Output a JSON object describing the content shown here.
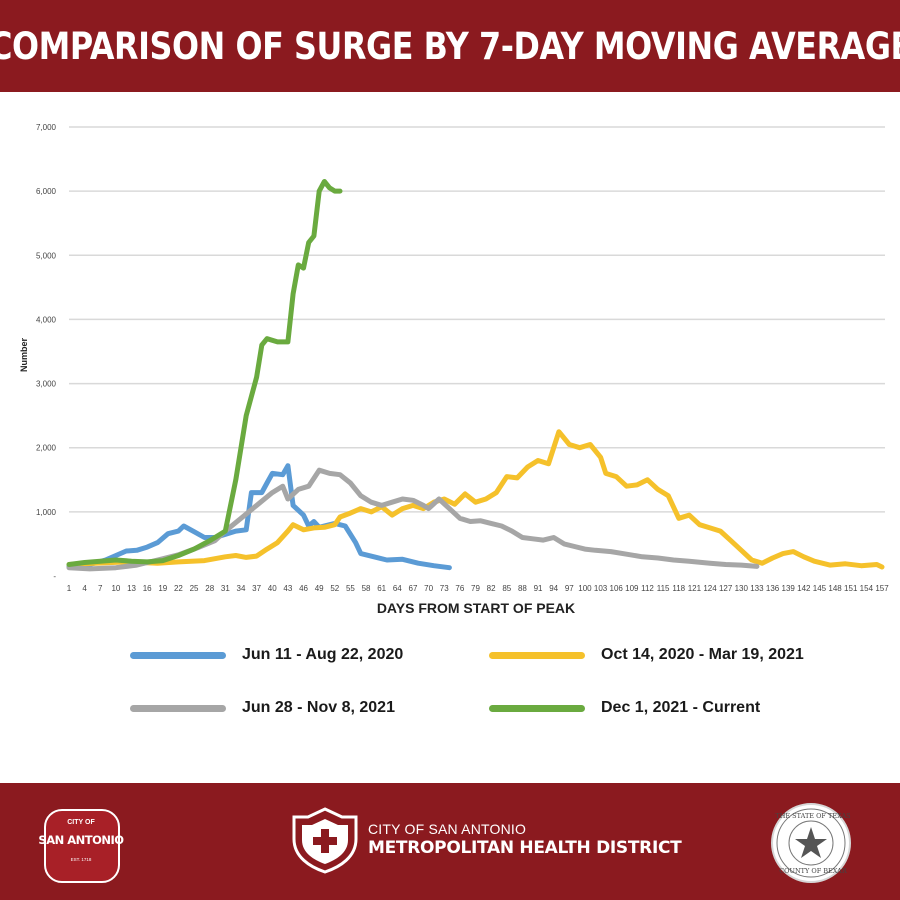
{
  "header": {
    "title": "COMPARISON OF SURGE BY 7-DAY MOVING AVERAGE"
  },
  "chart_data": {
    "type": "line",
    "title": "COMPARISON OF SURGE BY 7-DAY MOVING AVERAGE",
    "xlabel": "DAYS FROM START OF PEAK",
    "ylabel": "Number",
    "xlim": [
      1,
      157
    ],
    "ylim": [
      0,
      7000
    ],
    "grid": true,
    "legend_position": "bottom",
    "y_ticks": [
      "-",
      "1,000",
      "2,000",
      "3,000",
      "4,000",
      "5,000",
      "6,000",
      "7,000"
    ],
    "x_ticks": [
      "1",
      "4",
      "7",
      "10",
      "13",
      "16",
      "19",
      "22",
      "25",
      "28",
      "31",
      "34",
      "37",
      "40",
      "43",
      "46",
      "49",
      "52",
      "55",
      "58",
      "61",
      "64",
      "67",
      "70",
      "73",
      "76",
      "79",
      "82",
      "85",
      "88",
      "91",
      "94",
      "97",
      "100",
      "103",
      "106",
      "109",
      "112",
      "115",
      "118",
      "121",
      "124",
      "127",
      "130",
      "133",
      "136",
      "139",
      "142",
      "145",
      "148",
      "151",
      "154",
      "157"
    ],
    "series": [
      {
        "name": "Jun 11 - Aug 22, 2020",
        "color": "#5b9bd5",
        "points": [
          [
            1,
            150
          ],
          [
            5,
            180
          ],
          [
            8,
            250
          ],
          [
            10,
            320
          ],
          [
            12,
            390
          ],
          [
            14,
            400
          ],
          [
            16,
            450
          ],
          [
            18,
            520
          ],
          [
            20,
            660
          ],
          [
            22,
            700
          ],
          [
            23,
            780
          ],
          [
            25,
            690
          ],
          [
            27,
            600
          ],
          [
            29,
            600
          ],
          [
            31,
            650
          ],
          [
            33,
            700
          ],
          [
            35,
            720
          ],
          [
            36,
            1300
          ],
          [
            38,
            1300
          ],
          [
            39,
            1450
          ],
          [
            40,
            1600
          ],
          [
            42,
            1580
          ],
          [
            43,
            1720
          ],
          [
            44,
            1100
          ],
          [
            46,
            950
          ],
          [
            47,
            780
          ],
          [
            48,
            850
          ],
          [
            49,
            760
          ],
          [
            51,
            800
          ],
          [
            52,
            820
          ],
          [
            54,
            780
          ],
          [
            56,
            520
          ],
          [
            57,
            350
          ],
          [
            60,
            290
          ],
          [
            62,
            250
          ],
          [
            65,
            260
          ],
          [
            68,
            200
          ],
          [
            71,
            160
          ],
          [
            74,
            130
          ]
        ]
      },
      {
        "name": "Oct 14, 2020 - Mar 19, 2021",
        "color": "#f5c12b",
        "points": [
          [
            1,
            180
          ],
          [
            6,
            200
          ],
          [
            12,
            220
          ],
          [
            18,
            200
          ],
          [
            22,
            220
          ],
          [
            27,
            240
          ],
          [
            31,
            300
          ],
          [
            33,
            320
          ],
          [
            35,
            290
          ],
          [
            37,
            310
          ],
          [
            39,
            420
          ],
          [
            41,
            520
          ],
          [
            43,
            700
          ],
          [
            44,
            800
          ],
          [
            46,
            720
          ],
          [
            48,
            750
          ],
          [
            50,
            760
          ],
          [
            52,
            800
          ],
          [
            53,
            920
          ],
          [
            55,
            980
          ],
          [
            57,
            1050
          ],
          [
            59,
            1000
          ],
          [
            61,
            1080
          ],
          [
            63,
            950
          ],
          [
            65,
            1050
          ],
          [
            67,
            1100
          ],
          [
            69,
            1050
          ],
          [
            71,
            1150
          ],
          [
            73,
            1200
          ],
          [
            75,
            1120
          ],
          [
            77,
            1280
          ],
          [
            79,
            1150
          ],
          [
            81,
            1200
          ],
          [
            83,
            1300
          ],
          [
            85,
            1550
          ],
          [
            87,
            1530
          ],
          [
            89,
            1700
          ],
          [
            91,
            1800
          ],
          [
            93,
            1750
          ],
          [
            95,
            2250
          ],
          [
            97,
            2050
          ],
          [
            99,
            2000
          ],
          [
            101,
            2050
          ],
          [
            103,
            1850
          ],
          [
            104,
            1600
          ],
          [
            106,
            1550
          ],
          [
            108,
            1400
          ],
          [
            110,
            1420
          ],
          [
            112,
            1500
          ],
          [
            114,
            1350
          ],
          [
            116,
            1250
          ],
          [
            118,
            900
          ],
          [
            120,
            950
          ],
          [
            122,
            800
          ],
          [
            124,
            750
          ],
          [
            126,
            700
          ],
          [
            128,
            550
          ],
          [
            130,
            400
          ],
          [
            132,
            250
          ],
          [
            134,
            200
          ],
          [
            136,
            280
          ],
          [
            138,
            350
          ],
          [
            140,
            380
          ],
          [
            142,
            300
          ],
          [
            144,
            230
          ],
          [
            147,
            170
          ],
          [
            150,
            190
          ],
          [
            153,
            160
          ],
          [
            156,
            180
          ],
          [
            157,
            140
          ]
        ]
      },
      {
        "name": "Jun 28 - Nov 8, 2021",
        "color": "#a6a6a6",
        "points": [
          [
            1,
            130
          ],
          [
            5,
            110
          ],
          [
            10,
            130
          ],
          [
            14,
            170
          ],
          [
            18,
            250
          ],
          [
            22,
            330
          ],
          [
            26,
            450
          ],
          [
            29,
            550
          ],
          [
            31,
            700
          ],
          [
            34,
            900
          ],
          [
            37,
            1100
          ],
          [
            40,
            1300
          ],
          [
            42,
            1400
          ],
          [
            43,
            1200
          ],
          [
            45,
            1350
          ],
          [
            47,
            1400
          ],
          [
            49,
            1650
          ],
          [
            51,
            1600
          ],
          [
            53,
            1580
          ],
          [
            55,
            1450
          ],
          [
            57,
            1250
          ],
          [
            59,
            1150
          ],
          [
            61,
            1100
          ],
          [
            63,
            1150
          ],
          [
            65,
            1200
          ],
          [
            67,
            1180
          ],
          [
            69,
            1100
          ],
          [
            70,
            1050
          ],
          [
            72,
            1200
          ],
          [
            74,
            1050
          ],
          [
            76,
            900
          ],
          [
            78,
            850
          ],
          [
            80,
            860
          ],
          [
            82,
            820
          ],
          [
            84,
            780
          ],
          [
            86,
            700
          ],
          [
            88,
            600
          ],
          [
            90,
            580
          ],
          [
            92,
            560
          ],
          [
            94,
            600
          ],
          [
            96,
            500
          ],
          [
            98,
            460
          ],
          [
            100,
            420
          ],
          [
            102,
            400
          ],
          [
            105,
            380
          ],
          [
            108,
            340
          ],
          [
            111,
            300
          ],
          [
            114,
            280
          ],
          [
            117,
            250
          ],
          [
            120,
            230
          ],
          [
            124,
            200
          ],
          [
            127,
            180
          ],
          [
            130,
            170
          ],
          [
            133,
            150
          ]
        ]
      },
      {
        "name": "Dec 1, 2021 - Current",
        "color": "#6aaa3f",
        "points": [
          [
            1,
            180
          ],
          [
            4,
            210
          ],
          [
            7,
            230
          ],
          [
            10,
            250
          ],
          [
            13,
            230
          ],
          [
            16,
            220
          ],
          [
            19,
            240
          ],
          [
            22,
            320
          ],
          [
            25,
            420
          ],
          [
            28,
            550
          ],
          [
            31,
            700
          ],
          [
            33,
            1500
          ],
          [
            35,
            2500
          ],
          [
            37,
            3100
          ],
          [
            38,
            3600
          ],
          [
            39,
            3700
          ],
          [
            41,
            3650
          ],
          [
            43,
            3650
          ],
          [
            44,
            4400
          ],
          [
            45,
            4850
          ],
          [
            46,
            4800
          ],
          [
            47,
            5200
          ],
          [
            48,
            5300
          ],
          [
            49,
            6000
          ],
          [
            50,
            6150
          ],
          [
            51,
            6050
          ],
          [
            52,
            6000
          ],
          [
            53,
            6000
          ]
        ]
      }
    ]
  },
  "legend": {
    "items": [
      {
        "label": "Jun 11 - Aug 22, 2020",
        "color": "#5b9bd5"
      },
      {
        "label": "Oct 14, 2020 - Mar 19, 2021",
        "color": "#f5c12b"
      },
      {
        "label": "Jun 28 - Nov 8, 2021",
        "color": "#a6a6a6"
      },
      {
        "label": "Dec 1, 2021 - Current",
        "color": "#6aaa3f"
      }
    ]
  },
  "footer": {
    "logo_city_of": "CITY OF",
    "logo_name": "SAN ANTONIO",
    "logo_est": "EST. 1718",
    "health_district_line1": "CITY OF SAN ANTONIO",
    "health_district_line2": "METROPOLITAN HEALTH DISTRICT",
    "seal_top": "THE STATE OF TEXAS",
    "seal_bottom": "COUNTY OF BEXAR",
    "brand_color": "#8b1a1f"
  }
}
